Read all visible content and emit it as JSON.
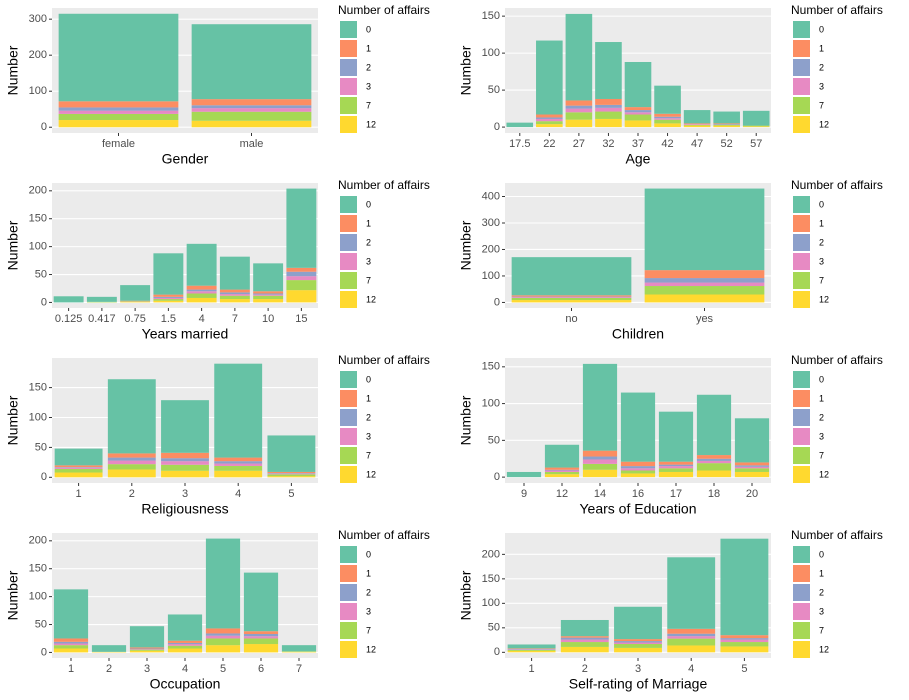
{
  "chart_data": [
    {
      "type": "bar",
      "x_label": "Gender",
      "y_label": "Number",
      "legend_title": "Number of affairs",
      "categories": [
        "female",
        "male"
      ],
      "ylim": [
        -16,
        331
      ],
      "yticks": [
        0,
        100,
        200,
        300
      ],
      "series": [
        {
          "name": "0",
          "color": "#66c2a5",
          "values": [
            243,
            208
          ]
        },
        {
          "name": "1",
          "color": "#fc8d62",
          "values": [
            17,
            17
          ]
        },
        {
          "name": "2",
          "color": "#8da0cb",
          "values": [
            9,
            8
          ]
        },
        {
          "name": "3",
          "color": "#e78ac3",
          "values": [
            9,
            10
          ]
        },
        {
          "name": "7",
          "color": "#a6d854",
          "values": [
            17,
            25
          ]
        },
        {
          "name": "12",
          "color": "#ffd92f",
          "values": [
            20,
            18
          ]
        }
      ]
    },
    {
      "type": "bar",
      "x_label": "Age",
      "y_label": "Number",
      "legend_title": "Number of affairs",
      "categories": [
        "17.5",
        "22",
        "27",
        "32",
        "37",
        "42",
        "47",
        "52",
        "57"
      ],
      "ylim": [
        -8,
        161
      ],
      "yticks": [
        0,
        50,
        100,
        150
      ],
      "series": [
        {
          "name": "0",
          "color": "#66c2a5",
          "values": [
            6,
            100,
            117,
            77,
            61,
            38,
            18,
            16,
            20
          ]
        },
        {
          "name": "1",
          "color": "#fc8d62",
          "values": [
            0,
            4,
            7,
            8,
            4,
            4,
            1,
            1,
            0
          ]
        },
        {
          "name": "2",
          "color": "#8da0cb",
          "values": [
            0,
            2,
            4,
            4,
            3,
            2,
            0,
            1,
            0
          ]
        },
        {
          "name": "3",
          "color": "#e78ac3",
          "values": [
            0,
            3,
            5,
            5,
            3,
            2,
            1,
            0,
            0
          ]
        },
        {
          "name": "7",
          "color": "#a6d854",
          "values": [
            0,
            4,
            10,
            10,
            8,
            5,
            1,
            1,
            1
          ]
        },
        {
          "name": "12",
          "color": "#ffd92f",
          "values": [
            0,
            4,
            10,
            11,
            9,
            5,
            2,
            2,
            1
          ]
        }
      ]
    },
    {
      "type": "bar",
      "x_label": "Years married",
      "y_label": "Number",
      "legend_title": "Number of affairs",
      "categories": [
        "0.125",
        "0.417",
        "0.75",
        "1.5",
        "4",
        "7",
        "10",
        "15"
      ],
      "ylim": [
        -10,
        214
      ],
      "yticks": [
        0,
        50,
        100,
        150,
        200
      ],
      "series": [
        {
          "name": "0",
          "color": "#66c2a5",
          "values": [
            11,
            9,
            28,
            74,
            75,
            59,
            50,
            142
          ]
        },
        {
          "name": "1",
          "color": "#fc8d62",
          "values": [
            0,
            0,
            1,
            4,
            7,
            5,
            4,
            7
          ]
        },
        {
          "name": "2",
          "color": "#8da0cb",
          "values": [
            0,
            0,
            0,
            2,
            3,
            3,
            2,
            8
          ]
        },
        {
          "name": "3",
          "color": "#e78ac3",
          "values": [
            0,
            0,
            0,
            2,
            4,
            3,
            2,
            7
          ]
        },
        {
          "name": "7",
          "color": "#a6d854",
          "values": [
            0,
            1,
            1,
            3,
            8,
            6,
            6,
            18
          ]
        },
        {
          "name": "12",
          "color": "#ffd92f",
          "values": [
            0,
            0,
            1,
            3,
            8,
            6,
            6,
            22
          ]
        }
      ]
    },
    {
      "type": "bar",
      "x_label": "Children",
      "y_label": "Number",
      "legend_title": "Number of affairs",
      "categories": [
        "no",
        "yes"
      ],
      "ylim": [
        -21,
        451
      ],
      "yticks": [
        0,
        100,
        200,
        300,
        400
      ],
      "series": [
        {
          "name": "0",
          "color": "#66c2a5",
          "values": [
            144,
            308
          ]
        },
        {
          "name": "1",
          "color": "#fc8d62",
          "values": [
            5,
            30
          ]
        },
        {
          "name": "2",
          "color": "#8da0cb",
          "values": [
            2,
            17
          ]
        },
        {
          "name": "3",
          "color": "#e78ac3",
          "values": [
            3,
            13
          ]
        },
        {
          "name": "7",
          "color": "#a6d854",
          "values": [
            8,
            32
          ]
        },
        {
          "name": "12",
          "color": "#ffd92f",
          "values": [
            9,
            30
          ]
        }
      ]
    },
    {
      "type": "bar",
      "x_label": "Religiousness",
      "y_label": "Number",
      "legend_title": "Number of affairs",
      "categories": [
        "1",
        "2",
        "3",
        "4",
        "5"
      ],
      "ylim": [
        -9.5,
        199.5
      ],
      "yticks": [
        0,
        50,
        100,
        150
      ],
      "series": [
        {
          "name": "0",
          "color": "#66c2a5",
          "values": [
            28,
            124,
            88,
            157,
            61
          ]
        },
        {
          "name": "1",
          "color": "#fc8d62",
          "values": [
            3,
            7,
            9,
            6,
            2
          ]
        },
        {
          "name": "2",
          "color": "#8da0cb",
          "values": [
            1,
            5,
            5,
            4,
            1
          ]
        },
        {
          "name": "3",
          "color": "#e78ac3",
          "values": [
            2,
            6,
            6,
            4,
            1
          ]
        },
        {
          "name": "7",
          "color": "#a6d854",
          "values": [
            6,
            9,
            10,
            8,
            3
          ]
        },
        {
          "name": "12",
          "color": "#ffd92f",
          "values": [
            8,
            13,
            11,
            11,
            2
          ]
        }
      ]
    },
    {
      "type": "bar",
      "x_label": "Years of Education",
      "y_label": "Number",
      "legend_title": "Number of affairs",
      "categories": [
        "9",
        "12",
        "14",
        "16",
        "17",
        "18",
        "20"
      ],
      "ylim": [
        -8,
        162
      ],
      "yticks": [
        0,
        50,
        100,
        150
      ],
      "series": [
        {
          "name": "0",
          "color": "#66c2a5",
          "values": [
            7,
            31,
            118,
            94,
            68,
            82,
            60
          ]
        },
        {
          "name": "1",
          "color": "#fc8d62",
          "values": [
            0,
            3,
            8,
            6,
            4,
            5,
            4
          ]
        },
        {
          "name": "2",
          "color": "#8da0cb",
          "values": [
            0,
            1,
            4,
            3,
            2,
            3,
            2
          ]
        },
        {
          "name": "3",
          "color": "#e78ac3",
          "values": [
            0,
            2,
            6,
            3,
            3,
            3,
            2
          ]
        },
        {
          "name": "7",
          "color": "#a6d854",
          "values": [
            0,
            3,
            8,
            4,
            5,
            10,
            5
          ]
        },
        {
          "name": "12",
          "color": "#ffd92f",
          "values": [
            0,
            4,
            10,
            5,
            7,
            9,
            7
          ]
        }
      ]
    },
    {
      "type": "bar",
      "x_label": "Occupation",
      "y_label": "Number",
      "legend_title": "Number of affairs",
      "categories": [
        "1",
        "2",
        "3",
        "4",
        "5",
        "6",
        "7"
      ],
      "ylim": [
        -10,
        214
      ],
      "yticks": [
        0,
        50,
        100,
        150,
        200
      ],
      "series": [
        {
          "name": "0",
          "color": "#66c2a5",
          "values": [
            88,
            12,
            38,
            47,
            161,
            105,
            11
          ]
        },
        {
          "name": "1",
          "color": "#fc8d62",
          "values": [
            6,
            0,
            2,
            4,
            9,
            5,
            0
          ]
        },
        {
          "name": "2",
          "color": "#8da0cb",
          "values": [
            3,
            0,
            1,
            2,
            4,
            4,
            0
          ]
        },
        {
          "name": "3",
          "color": "#e78ac3",
          "values": [
            3,
            0,
            1,
            3,
            5,
            4,
            0
          ]
        },
        {
          "name": "7",
          "color": "#a6d854",
          "values": [
            6,
            0,
            2,
            5,
            12,
            10,
            1
          ]
        },
        {
          "name": "12",
          "color": "#ffd92f",
          "values": [
            7,
            1,
            3,
            7,
            13,
            15,
            1
          ]
        }
      ]
    },
    {
      "type": "bar",
      "x_label": "Self-rating of Marriage",
      "y_label": "Number",
      "legend_title": "Number of affairs",
      "categories": [
        "1",
        "2",
        "3",
        "4",
        "5"
      ],
      "ylim": [
        -11.6,
        243.6
      ],
      "yticks": [
        0,
        50,
        100,
        150,
        200
      ],
      "series": [
        {
          "name": "0",
          "color": "#66c2a5",
          "values": [
            8,
            33,
            66,
            146,
            197
          ]
        },
        {
          "name": "1",
          "color": "#fc8d62",
          "values": [
            1,
            3,
            4,
            10,
            6
          ]
        },
        {
          "name": "2",
          "color": "#8da0cb",
          "values": [
            1,
            4,
            3,
            5,
            3
          ]
        },
        {
          "name": "3",
          "color": "#e78ac3",
          "values": [
            1,
            5,
            3,
            5,
            5
          ]
        },
        {
          "name": "7",
          "color": "#a6d854",
          "values": [
            2,
            10,
            8,
            14,
            9
          ]
        },
        {
          "name": "12",
          "color": "#ffd92f",
          "values": [
            3,
            11,
            9,
            14,
            12
          ]
        }
      ]
    }
  ]
}
